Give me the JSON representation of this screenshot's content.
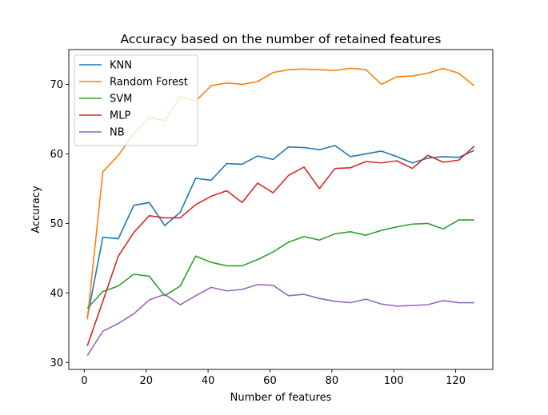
{
  "chart_data": {
    "type": "line",
    "title": "Accuracy based on the number of retained features",
    "xlabel": "Number of features",
    "ylabel": "Accuracy",
    "xlim": [
      -5,
      132
    ],
    "ylim": [
      29,
      75
    ],
    "xticks": [
      0,
      20,
      40,
      60,
      80,
      100,
      120
    ],
    "yticks": [
      30,
      40,
      50,
      60,
      70
    ],
    "grid": false,
    "legend_position": "top-left",
    "x": [
      1,
      6,
      11,
      16,
      21,
      26,
      31,
      36,
      41,
      46,
      51,
      56,
      61,
      66,
      71,
      76,
      81,
      86,
      91,
      96,
      101,
      106,
      111,
      116,
      121,
      126
    ],
    "series": [
      {
        "name": "KNN",
        "color": "#1f77b4",
        "values": [
          36.5,
          48.0,
          47.8,
          52.6,
          53.0,
          49.7,
          51.6,
          56.5,
          56.2,
          58.6,
          58.5,
          59.7,
          59.2,
          61.0,
          60.9,
          60.6,
          61.2,
          59.6,
          60.0,
          60.4,
          59.6,
          58.7,
          59.4,
          59.6,
          59.5,
          60.5
        ]
      },
      {
        "name": "Random Forest",
        "color": "#ff7f0e",
        "values": [
          36.2,
          57.4,
          59.8,
          62.9,
          65.2,
          64.8,
          68.2,
          67.6,
          69.8,
          70.2,
          70.0,
          70.4,
          71.7,
          72.1,
          72.2,
          72.1,
          72.0,
          72.3,
          72.1,
          70.0,
          71.1,
          71.2,
          71.6,
          72.3,
          71.6,
          69.8
        ]
      },
      {
        "name": "SVM",
        "color": "#2ca02c",
        "values": [
          37.8,
          40.2,
          41.0,
          42.7,
          42.4,
          39.6,
          41.0,
          45.3,
          44.4,
          43.9,
          43.9,
          44.8,
          45.9,
          47.3,
          48.1,
          47.6,
          48.5,
          48.8,
          48.3,
          49.0,
          49.5,
          49.9,
          50.0,
          49.2,
          50.5,
          50.5
        ]
      },
      {
        "name": "MLP",
        "color": "#d62728",
        "values": [
          32.4,
          38.8,
          45.3,
          48.7,
          51.1,
          50.8,
          50.8,
          52.7,
          53.9,
          54.7,
          53.0,
          55.8,
          54.4,
          56.9,
          58.1,
          55.0,
          57.9,
          58.0,
          58.9,
          58.7,
          59.0,
          57.9,
          59.8,
          58.8,
          59.1,
          61.1
        ]
      },
      {
        "name": "NB",
        "color": "#9467bd",
        "values": [
          31.0,
          34.5,
          35.6,
          37.0,
          39.0,
          39.8,
          38.3,
          39.6,
          40.8,
          40.3,
          40.5,
          41.2,
          41.1,
          39.6,
          39.8,
          39.2,
          38.8,
          38.6,
          39.1,
          38.4,
          38.1,
          38.2,
          38.3,
          38.9,
          38.6,
          38.6
        ]
      }
    ]
  }
}
